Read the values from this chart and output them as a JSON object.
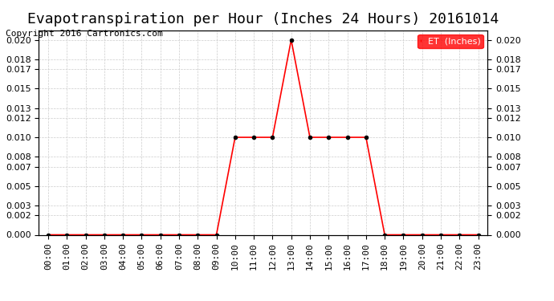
{
  "title": "Evapotranspiration per Hour (Inches 24 Hours) 20161014",
  "copyright": "Copyright 2016 Cartronics.com",
  "legend_label": "ET  (Inches)",
  "legend_bg": "#ff0000",
  "legend_text_color": "#ffffff",
  "line_color": "#ff0000",
  "marker_color": "#000000",
  "background_color": "#ffffff",
  "grid_color": "#cccccc",
  "hours": [
    "00:00",
    "01:00",
    "02:00",
    "03:00",
    "04:00",
    "05:00",
    "06:00",
    "07:00",
    "08:00",
    "09:00",
    "10:00",
    "11:00",
    "12:00",
    "13:00",
    "14:00",
    "15:00",
    "16:00",
    "17:00",
    "18:00",
    "19:00",
    "20:00",
    "21:00",
    "22:00",
    "23:00"
  ],
  "values": [
    0.0,
    0.0,
    0.0,
    0.0,
    0.0,
    0.0,
    0.0,
    0.0,
    0.0,
    0.0,
    0.01,
    0.01,
    0.01,
    0.02,
    0.01,
    0.01,
    0.01,
    0.01,
    0.0,
    0.0,
    0.0,
    0.0,
    0.0,
    0.0
  ],
  "ylim": [
    0,
    0.021
  ],
  "yticks": [
    0.0,
    0.002,
    0.003,
    0.005,
    0.007,
    0.008,
    0.01,
    0.012,
    0.013,
    0.015,
    0.017,
    0.018,
    0.02
  ],
  "title_fontsize": 13,
  "tick_fontsize": 8,
  "copyright_fontsize": 8
}
